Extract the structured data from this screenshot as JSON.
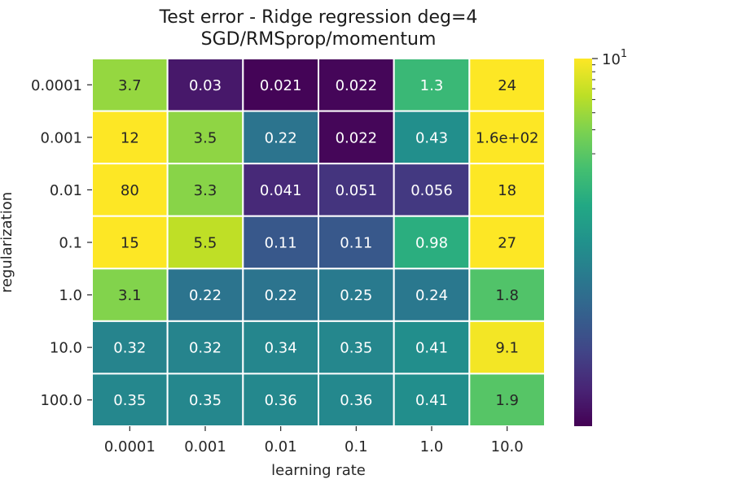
{
  "chart_data": {
    "type": "heatmap",
    "title": "Test error - Ridge regression deg=4",
    "subtitle": "SGD/RMSprop/momentum",
    "xlabel": "learning rate",
    "ylabel": "regularization",
    "x_categories": [
      "0.0001",
      "0.001",
      "0.01",
      "0.1",
      "1.0",
      "10.0"
    ],
    "y_categories": [
      "0.0001",
      "0.001",
      "0.01",
      "0.1",
      "1.0",
      "10.0",
      "100.0"
    ],
    "values": [
      [
        3.7,
        0.03,
        0.021,
        0.022,
        1.3,
        24
      ],
      [
        12,
        3.5,
        0.22,
        0.022,
        0.43,
        160
      ],
      [
        80,
        3.3,
        0.041,
        0.051,
        0.056,
        18
      ],
      [
        15,
        5.5,
        0.11,
        0.11,
        0.98,
        27
      ],
      [
        3.1,
        0.22,
        0.22,
        0.25,
        0.24,
        1.8
      ],
      [
        0.32,
        0.32,
        0.34,
        0.35,
        0.41,
        9.1
      ],
      [
        0.35,
        0.35,
        0.36,
        0.36,
        0.41,
        1.9
      ]
    ],
    "labels": [
      [
        "3.7",
        "0.03",
        "0.021",
        "0.022",
        "1.3",
        "24"
      ],
      [
        "12",
        "3.5",
        "0.22",
        "0.022",
        "0.43",
        "1.6e+02"
      ],
      [
        "80",
        "3.3",
        "0.041",
        "0.051",
        "0.056",
        "18"
      ],
      [
        "15",
        "5.5",
        "0.11",
        "0.11",
        "0.98",
        "27"
      ],
      [
        "3.1",
        "0.22",
        "0.22",
        "0.25",
        "0.24",
        "1.8"
      ],
      [
        "0.32",
        "0.32",
        "0.34",
        "0.35",
        "0.41",
        "9.1"
      ],
      [
        "0.35",
        "0.35",
        "0.36",
        "0.36",
        "0.41",
        "1.9"
      ]
    ],
    "colorscale": "viridis",
    "color_scale_type": "log",
    "color_range": [
      0.02,
      10
    ],
    "colorbar_top_label_base": "10",
    "colorbar_top_label_exp": "1",
    "colorbar_position": "right",
    "grid": false
  }
}
